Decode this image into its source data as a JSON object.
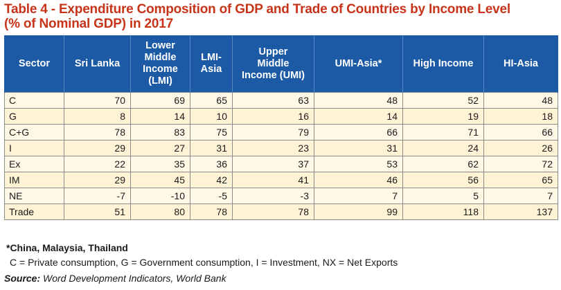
{
  "title": {
    "line1": "Table 4 - Expenditure Composition of GDP and Trade of Countries by Income Level",
    "line2": "(% of Nominal GDP) in 2017"
  },
  "table": {
    "headers": [
      [
        "Sector"
      ],
      [
        "Sri Lanka"
      ],
      [
        "Lower",
        "Middle",
        "Income",
        "(LMI)"
      ],
      [
        "LMI-",
        "Asia"
      ],
      [
        "Upper",
        "Middle",
        "Income (UMI)"
      ],
      [
        "UMI-Asia*"
      ],
      [
        "High Income"
      ],
      [
        "HI-Asia"
      ]
    ],
    "rows": [
      [
        "C",
        "70",
        "69",
        "65",
        "63",
        "48",
        "52",
        "48"
      ],
      [
        "G",
        "8",
        "14",
        "10",
        "16",
        "14",
        "19",
        "18"
      ],
      [
        "C+G",
        "78",
        "83",
        "75",
        "79",
        "66",
        "71",
        "66"
      ],
      [
        "I",
        "29",
        "27",
        "31",
        "23",
        "31",
        "24",
        "26"
      ],
      [
        "Ex",
        "22",
        "35",
        "36",
        "37",
        "53",
        "62",
        "72"
      ],
      [
        "IM",
        "29",
        "45",
        "42",
        "41",
        "46",
        "56",
        "65"
      ],
      [
        "NE",
        "-7",
        "-10",
        "-5",
        "-3",
        "7",
        "5",
        "7"
      ],
      [
        "Trade",
        "51",
        "80",
        "78",
        "78",
        "99",
        "118",
        "137"
      ]
    ],
    "colors": {
      "header_bg": "#1c5aa6",
      "row_bg": "#fff8e6",
      "title": "#c8341a"
    }
  },
  "footnote": "*China, Malaysia, Thailand",
  "abbreviations": "C = Private consumption, G = Government consumption, I = Investment, NX = Net Exports",
  "source": {
    "label": "Source:",
    "text": " Word Development Indicators, World Bank"
  }
}
